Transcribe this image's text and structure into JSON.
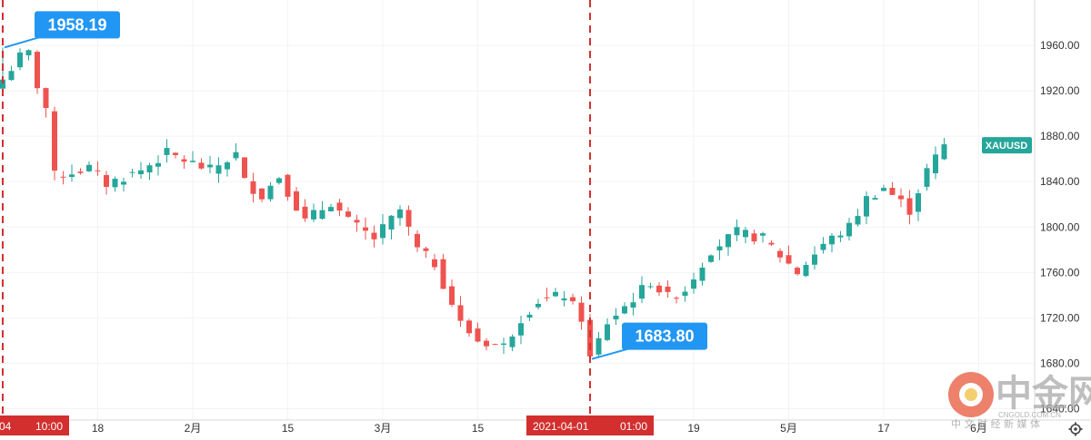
{
  "chart_data": {
    "type": "candlestick",
    "symbol": "XAUUSD",
    "ylim": [
      1630,
      2000
    ],
    "y_ticks": [
      "1960.00",
      "1920.00",
      "1880.00",
      "1840.00",
      "1800.00",
      "1760.00",
      "1720.00",
      "1680.00",
      "1640.00"
    ],
    "y_tick_values": [
      1960,
      1920,
      1880,
      1840,
      1800,
      1760,
      1720,
      1680,
      1640
    ],
    "x_ticks": [
      "18",
      "2月",
      "15",
      "3月",
      "15",
      "19",
      "5月",
      "17",
      "6月"
    ],
    "x_tick_index": [
      11,
      22,
      33,
      44,
      55,
      80,
      91,
      102,
      113
    ],
    "num_bars": 110,
    "up_color": "#26a69a",
    "down_color": "#ef5350",
    "markers": [
      {
        "index": 0,
        "date_label": "04",
        "time_label": "10:00",
        "value": 1958.19,
        "value_label": "1958.19",
        "callout_on": "high"
      },
      {
        "index": 68,
        "date_label": "2021-04-01",
        "time_label": "01:00",
        "value": 1683.8,
        "value_label": "1683.80",
        "callout_on": "low"
      }
    ],
    "last_price_tag_color": "#26a69a",
    "series_path": [
      [
        0,
        1930
      ],
      [
        2,
        1950
      ],
      [
        3,
        1953
      ],
      [
        4,
        1925
      ],
      [
        5,
        1905
      ],
      [
        6,
        1845
      ],
      [
        10,
        1852
      ],
      [
        12,
        1838
      ],
      [
        16,
        1850
      ],
      [
        19,
        1865
      ],
      [
        24,
        1850
      ],
      [
        27,
        1864
      ],
      [
        28,
        1840
      ],
      [
        30,
        1828
      ],
      [
        32,
        1845
      ],
      [
        35,
        1805
      ],
      [
        38,
        1822
      ],
      [
        40,
        1805
      ],
      [
        43,
        1790
      ],
      [
        46,
        1815
      ],
      [
        48,
        1780
      ],
      [
        50,
        1768
      ],
      [
        53,
        1715
      ],
      [
        55,
        1700
      ],
      [
        58,
        1695
      ],
      [
        60,
        1720
      ],
      [
        62,
        1735
      ],
      [
        65,
        1740
      ],
      [
        67,
        1720
      ],
      [
        68,
        1684
      ],
      [
        70,
        1716
      ],
      [
        72,
        1730
      ],
      [
        75,
        1752
      ],
      [
        77,
        1738
      ],
      [
        79,
        1745
      ],
      [
        82,
        1780
      ],
      [
        85,
        1795
      ],
      [
        88,
        1790
      ],
      [
        92,
        1760
      ],
      [
        95,
        1785
      ],
      [
        98,
        1800
      ],
      [
        100,
        1825
      ],
      [
        102,
        1835
      ],
      [
        105,
        1815
      ],
      [
        107,
        1850
      ],
      [
        109,
        1872
      ]
    ]
  },
  "watermark": {
    "brand": "中金网",
    "domain": "CNGOLD.COM.CN",
    "tagline": "中 文 财 经 新 媒 体"
  },
  "icons": {
    "settings": "gear-icon"
  }
}
